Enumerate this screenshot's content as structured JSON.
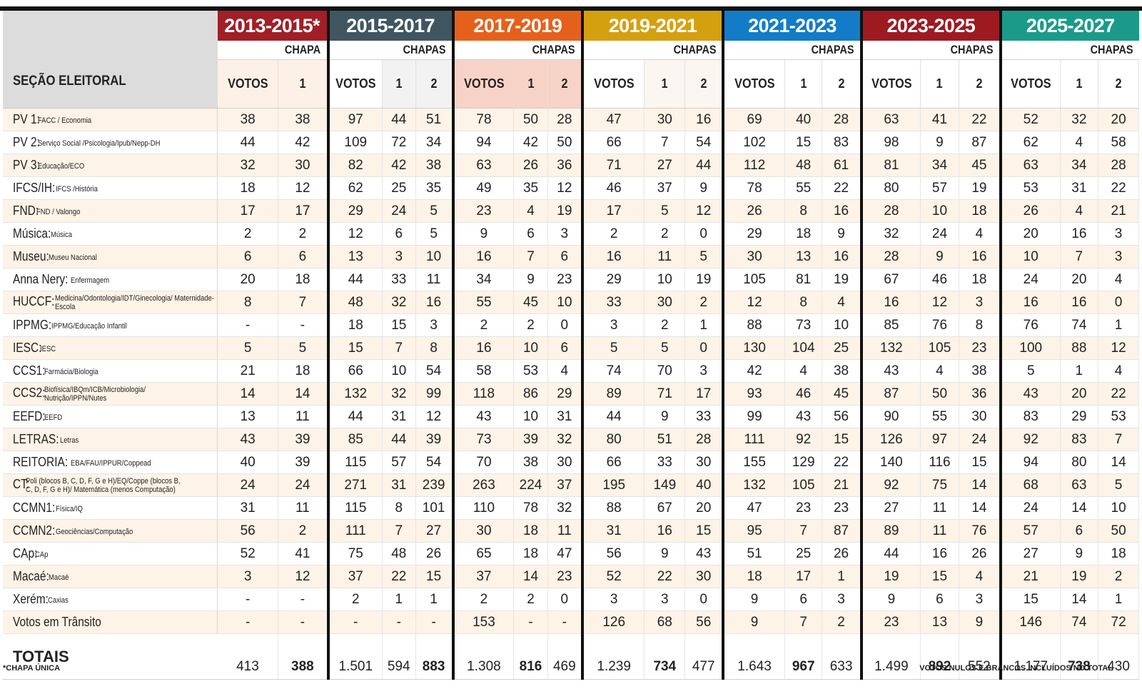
{
  "header": {
    "section_label": "SEÇÃO ELEITORAL",
    "periods": [
      {
        "label": "2013-2015*",
        "color": "#a11f27",
        "chapa_label": "CHAPA",
        "sub": [
          "VOTOS",
          "1"
        ]
      },
      {
        "label": "2015-2017",
        "color": "#3f5660",
        "chapa_label": "CHAPAS",
        "sub": [
          "VOTOS",
          "1",
          "2"
        ]
      },
      {
        "label": "2017-2019",
        "color": "#e5611b",
        "chapa_label": "CHAPAS",
        "sub": [
          "VOTOS",
          "1",
          "2"
        ]
      },
      {
        "label": "2019-2021",
        "color": "#d5a010",
        "chapa_label": "CHAPAS",
        "sub": [
          "VOTOS",
          "1",
          "2"
        ]
      },
      {
        "label": "2021-2023",
        "color": "#127cc8",
        "chapa_label": "CHAPAS",
        "sub": [
          "VOTOS",
          "1",
          "2"
        ]
      },
      {
        "label": "2023-2025",
        "color": "#9e1a21",
        "chapa_label": "CHAPAS",
        "sub": [
          "VOTOS",
          "1",
          "2"
        ]
      },
      {
        "label": "2025-2027",
        "color": "#1a9b8a",
        "chapa_label": "CHAPAS",
        "sub": [
          "VOTOS",
          "1",
          "2"
        ]
      }
    ]
  },
  "rows": [
    {
      "name": "PV 1:",
      "desc": "FACC / Economia",
      "values": [
        "38",
        "38",
        "97",
        "44",
        "51",
        "78",
        "50",
        "28",
        "47",
        "30",
        "16",
        "69",
        "40",
        "28",
        "63",
        "41",
        "22",
        "52",
        "32",
        "20"
      ]
    },
    {
      "name": "PV 2:",
      "desc": "Serviço Social /Psicologia/Ipub/Nepp-DH",
      "values": [
        "44",
        "42",
        "109",
        "72",
        "34",
        "94",
        "42",
        "50",
        "66",
        "7",
        "54",
        "102",
        "15",
        "83",
        "98",
        "9",
        "87",
        "62",
        "4",
        "58"
      ]
    },
    {
      "name": "PV 3:",
      "desc": "Educação/ECO",
      "values": [
        "32",
        "30",
        "82",
        "42",
        "38",
        "63",
        "26",
        "36",
        "71",
        "27",
        "44",
        "112",
        "48",
        "61",
        "81",
        "34",
        "45",
        "63",
        "34",
        "28"
      ]
    },
    {
      "name": "IFCS/IH:",
      "desc": "IFCS /História",
      "values": [
        "18",
        "12",
        "62",
        "25",
        "35",
        "49",
        "35",
        "12",
        "46",
        "37",
        "9",
        "78",
        "55",
        "22",
        "80",
        "57",
        "19",
        "53",
        "31",
        "22"
      ]
    },
    {
      "name": "FND:",
      "desc": "FND / Valongo",
      "values": [
        "17",
        "17",
        "29",
        "24",
        "5",
        "23",
        "4",
        "19",
        "17",
        "5",
        "12",
        "26",
        "8",
        "16",
        "28",
        "10",
        "18",
        "26",
        "4",
        "21"
      ]
    },
    {
      "name": "Música:",
      "desc": "Música",
      "values": [
        "2",
        "2",
        "12",
        "6",
        "5",
        "9",
        "6",
        "3",
        "2",
        "2",
        "0",
        "29",
        "18",
        "9",
        "32",
        "24",
        "4",
        "20",
        "16",
        "3"
      ]
    },
    {
      "name": "Museu:",
      "desc": "Museu Nacional",
      "values": [
        "6",
        "6",
        "13",
        "3",
        "10",
        "16",
        "7",
        "6",
        "16",
        "11",
        "5",
        "30",
        "13",
        "16",
        "28",
        "9",
        "16",
        "10",
        "7",
        "3"
      ]
    },
    {
      "name": "Anna Nery:",
      "desc": "Enfermagem",
      "values": [
        "20",
        "18",
        "44",
        "33",
        "11",
        "34",
        "9",
        "23",
        "29",
        "10",
        "19",
        "105",
        "81",
        "19",
        "67",
        "46",
        "18",
        "24",
        "20",
        "4"
      ]
    },
    {
      "name": "HUCCF:",
      "desc": "Medicina/Odontologia/IDT/Ginecologia/ Maternidade-Escola",
      "two": true,
      "values": [
        "8",
        "7",
        "48",
        "32",
        "16",
        "55",
        "45",
        "10",
        "33",
        "30",
        "2",
        "12",
        "8",
        "4",
        "16",
        "12",
        "3",
        "16",
        "16",
        "0"
      ]
    },
    {
      "name": "IPPMG:",
      "desc": "IPPMG/Educação Infantil",
      "values": [
        "-",
        "-",
        "18",
        "15",
        "3",
        "2",
        "2",
        "0",
        "3",
        "2",
        "1",
        "88",
        "73",
        "10",
        "85",
        "76",
        "8",
        "76",
        "74",
        "1"
      ]
    },
    {
      "name": "IESC:",
      "desc": "IESC",
      "values": [
        "5",
        "5",
        "15",
        "7",
        "8",
        "16",
        "10",
        "6",
        "5",
        "5",
        "0",
        "130",
        "104",
        "25",
        "132",
        "105",
        "23",
        "100",
        "88",
        "12"
      ]
    },
    {
      "name": "CCS1:",
      "desc": "Farmácia/Biologia",
      "values": [
        "21",
        "18",
        "66",
        "10",
        "54",
        "58",
        "53",
        "4",
        "74",
        "70",
        "3",
        "42",
        "4",
        "38",
        "43",
        "4",
        "38",
        "5",
        "1",
        "4"
      ]
    },
    {
      "name": "CCS2:",
      "desc": "Biofísica/IBQm/ICB/Microbiologia/ Nutrição/IPPN/Nutes",
      "two": true,
      "values": [
        "14",
        "14",
        "132",
        "32",
        "99",
        "118",
        "86",
        "29",
        "89",
        "71",
        "17",
        "93",
        "46",
        "45",
        "87",
        "50",
        "36",
        "43",
        "20",
        "22"
      ]
    },
    {
      "name": "EEFD:",
      "desc": "EEFD",
      "values": [
        "13",
        "11",
        "44",
        "31",
        "12",
        "43",
        "10",
        "31",
        "44",
        "9",
        "33",
        "99",
        "43",
        "56",
        "90",
        "55",
        "30",
        "83",
        "29",
        "53"
      ]
    },
    {
      "name": "LETRAS:",
      "desc": "Letras",
      "values": [
        "43",
        "39",
        "85",
        "44",
        "39",
        "73",
        "39",
        "32",
        "80",
        "51",
        "28",
        "111",
        "92",
        "15",
        "126",
        "97",
        "24",
        "92",
        "83",
        "7"
      ]
    },
    {
      "name": "REITORIA:",
      "desc": "EBA/FAU/IPPUR/Coppead",
      "values": [
        "40",
        "39",
        "115",
        "57",
        "54",
        "70",
        "38",
        "30",
        "66",
        "33",
        "30",
        "155",
        "129",
        "22",
        "140",
        "116",
        "15",
        "94",
        "80",
        "14"
      ]
    },
    {
      "name": "CT:",
      "desc": "Poli (blocos B, C, D, F, G e H)/EQ/Coppe (blocos B, C, D, F, G e H)/ Matemática (menos Computação)",
      "two": true,
      "values": [
        "24",
        "24",
        "271",
        "31",
        "239",
        "263",
        "224",
        "37",
        "195",
        "149",
        "40",
        "132",
        "105",
        "21",
        "92",
        "75",
        "14",
        "68",
        "63",
        "5"
      ]
    },
    {
      "name": "CCMN1:",
      "desc": "Física/IQ",
      "values": [
        "31",
        "11",
        "115",
        "8",
        "101",
        "110",
        "78",
        "32",
        "88",
        "67",
        "20",
        "47",
        "23",
        "23",
        "27",
        "11",
        "14",
        "24",
        "14",
        "10"
      ]
    },
    {
      "name": "CCMN2:",
      "desc": "Geociências/Computação",
      "values": [
        "56",
        "2",
        "111",
        "7",
        "27",
        "30",
        "18",
        "11",
        "31",
        "16",
        "15",
        "95",
        "7",
        "87",
        "89",
        "11",
        "76",
        "57",
        "6",
        "50"
      ]
    },
    {
      "name": "CAp:",
      "desc": "CAp",
      "values": [
        "52",
        "41",
        "75",
        "48",
        "26",
        "65",
        "18",
        "47",
        "56",
        "9",
        "43",
        "51",
        "25",
        "26",
        "44",
        "16",
        "26",
        "27",
        "9",
        "18"
      ]
    },
    {
      "name": "Macaé:",
      "desc": "Macaé",
      "values": [
        "3",
        "12",
        "37",
        "22",
        "15",
        "37",
        "14",
        "23",
        "52",
        "22",
        "30",
        "18",
        "17",
        "1",
        "19",
        "15",
        "4",
        "21",
        "19",
        "2"
      ]
    },
    {
      "name": "Xerém:",
      "desc": "Caxias",
      "values": [
        "-",
        "-",
        "2",
        "1",
        "1",
        "2",
        "2",
        "0",
        "3",
        "3",
        "0",
        "9",
        "6",
        "3",
        "9",
        "6",
        "3",
        "15",
        "14",
        "1"
      ]
    },
    {
      "name": "Votos em Trânsito",
      "desc": "",
      "values": [
        "-",
        "-",
        "-",
        "-",
        "-",
        "153",
        "-",
        "-",
        "126",
        "68",
        "56",
        "9",
        "7",
        "2",
        "23",
        "13",
        "9",
        "146",
        "74",
        "72"
      ]
    }
  ],
  "totals": {
    "label": "TOTAIS",
    "values": [
      "413",
      "388",
      "1.501",
      "594",
      "883",
      "1.308",
      "816",
      "469",
      "1.239",
      "734",
      "477",
      "1.643",
      "967",
      "633",
      "1.499",
      "892",
      "552",
      "1.177",
      "738",
      "430"
    ],
    "bold_index": [
      1,
      4,
      6,
      9,
      12,
      15,
      18
    ]
  },
  "footnotes": {
    "left": "*CHAPA ÚNICA",
    "right": "VOTOS NULOS E BRANCOS INCLUÍDOS NO TOTAL"
  }
}
